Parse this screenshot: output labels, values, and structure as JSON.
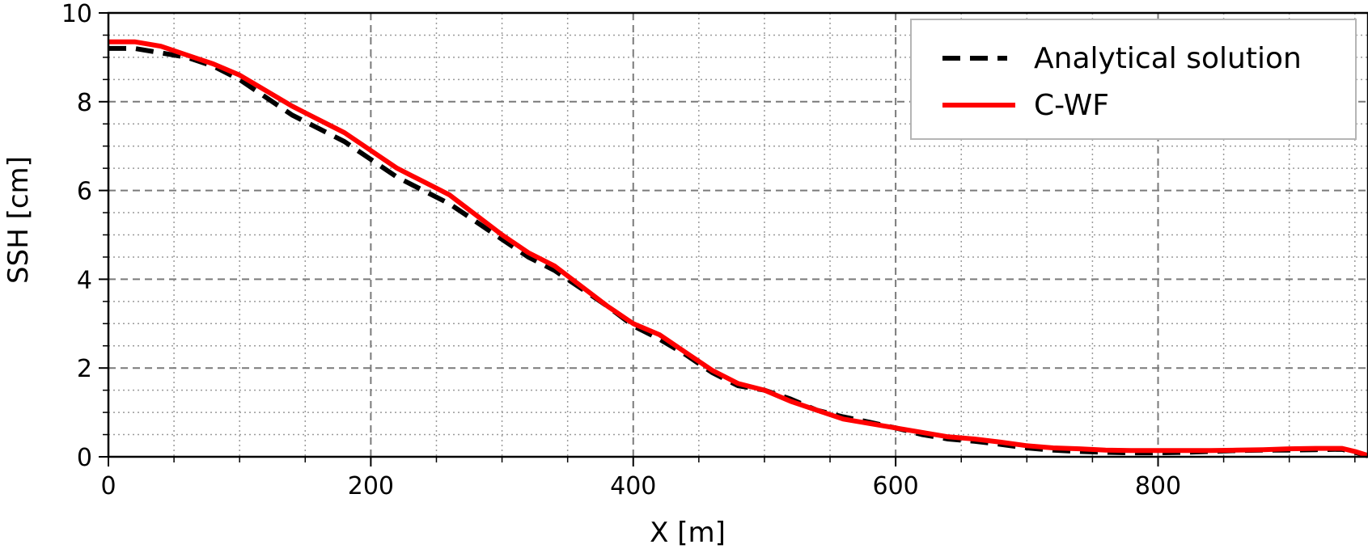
{
  "chart_data": {
    "type": "line",
    "xlabel": "X [m]",
    "ylabel": "SSH [cm]",
    "xlim": [
      0,
      960
    ],
    "ylim": [
      0,
      10
    ],
    "xticks": [
      0,
      200,
      400,
      600,
      800
    ],
    "yticks": [
      0,
      2,
      4,
      6,
      8,
      10
    ],
    "x_minor_step": 50,
    "y_minor_step": 0.5,
    "grid": true,
    "legend_position": "top-right",
    "series": [
      {
        "name": "Analytical solution",
        "style": "dashed",
        "color": "#000000",
        "x": [
          0,
          20,
          40,
          60,
          80,
          100,
          120,
          140,
          160,
          180,
          200,
          220,
          240,
          260,
          280,
          300,
          320,
          340,
          360,
          380,
          400,
          420,
          440,
          460,
          480,
          500,
          520,
          540,
          560,
          580,
          600,
          620,
          640,
          660,
          680,
          700,
          720,
          740,
          760,
          780,
          800,
          820,
          840,
          860,
          880,
          900,
          920,
          940,
          950,
          960
        ],
        "values": [
          9.2,
          9.2,
          9.1,
          9.0,
          8.8,
          8.5,
          8.1,
          7.7,
          7.4,
          7.1,
          6.7,
          6.3,
          6.0,
          5.7,
          5.3,
          4.9,
          4.5,
          4.2,
          3.8,
          3.4,
          2.95,
          2.65,
          2.3,
          1.9,
          1.6,
          1.5,
          1.3,
          1.05,
          0.9,
          0.78,
          0.65,
          0.5,
          0.4,
          0.35,
          0.28,
          0.2,
          0.15,
          0.12,
          0.1,
          0.09,
          0.09,
          0.1,
          0.12,
          0.14,
          0.15,
          0.15,
          0.16,
          0.17,
          0.1,
          0.02
        ]
      },
      {
        "name": "C-WF",
        "style": "solid",
        "color": "#ff0000",
        "x": [
          0,
          20,
          40,
          60,
          80,
          100,
          120,
          140,
          160,
          180,
          200,
          220,
          240,
          260,
          280,
          300,
          320,
          340,
          360,
          380,
          400,
          420,
          440,
          460,
          480,
          500,
          520,
          540,
          560,
          580,
          600,
          620,
          640,
          660,
          680,
          700,
          720,
          740,
          760,
          780,
          800,
          820,
          840,
          860,
          880,
          900,
          920,
          940,
          950,
          960
        ],
        "values": [
          9.35,
          9.35,
          9.25,
          9.05,
          8.85,
          8.6,
          8.25,
          7.9,
          7.6,
          7.3,
          6.9,
          6.5,
          6.2,
          5.9,
          5.45,
          5.0,
          4.6,
          4.3,
          3.85,
          3.4,
          3.0,
          2.75,
          2.35,
          1.95,
          1.65,
          1.5,
          1.25,
          1.05,
          0.85,
          0.75,
          0.65,
          0.55,
          0.45,
          0.4,
          0.33,
          0.25,
          0.2,
          0.18,
          0.15,
          0.14,
          0.14,
          0.14,
          0.14,
          0.15,
          0.16,
          0.18,
          0.19,
          0.19,
          0.12,
          0.03
        ]
      }
    ]
  }
}
